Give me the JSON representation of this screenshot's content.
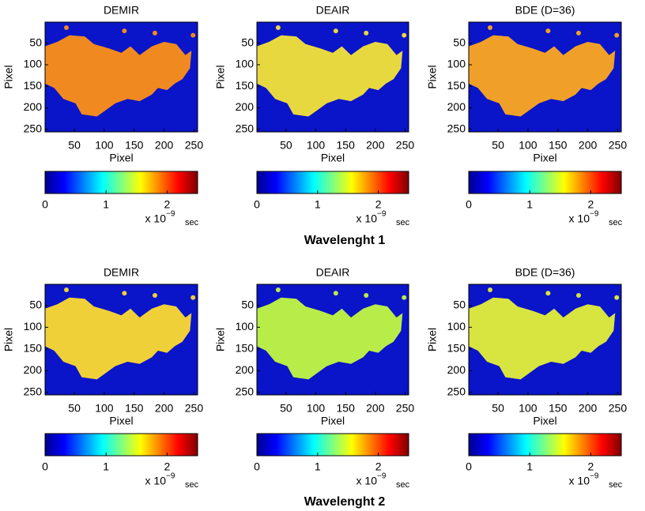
{
  "section_labels": [
    "Wavelenght 1",
    "Wavelenght 2"
  ],
  "chart_data": [
    {
      "type": "heatmap",
      "title": "DEMIR",
      "xlabel": "Pixel",
      "ylabel": "Pixel",
      "xlim": [
        1,
        256
      ],
      "ylim": [
        1,
        256
      ],
      "y_inverted": true,
      "xticks": [
        50,
        100,
        150,
        200,
        250
      ],
      "yticks": [
        50,
        100,
        150,
        200,
        250
      ],
      "background_color": "#0a14c8",
      "region_color": "#f08a20",
      "colorbar": {
        "colormap": "jet",
        "lim": [
          0,
          2.5
        ],
        "ticks": [
          0,
          1,
          2
        ],
        "base": "x 10",
        "exponent": "−9",
        "unit": "sec"
      }
    },
    {
      "type": "heatmap",
      "title": "DEAIR",
      "xlabel": "Pixel",
      "ylabel": "Pixel",
      "xlim": [
        1,
        256
      ],
      "ylim": [
        1,
        256
      ],
      "y_inverted": true,
      "xticks": [
        50,
        100,
        150,
        200,
        250
      ],
      "yticks": [
        50,
        100,
        150,
        200,
        250
      ],
      "background_color": "#0a14c8",
      "region_color": "#e8d840",
      "colorbar": {
        "colormap": "jet",
        "lim": [
          0,
          2.5
        ],
        "ticks": [
          0,
          1,
          2
        ],
        "base": "x 10",
        "exponent": "−9",
        "unit": "sec"
      }
    },
    {
      "type": "heatmap",
      "title": "BDE (D=36)",
      "xlabel": "Pixel",
      "ylabel": "Pixel",
      "xlim": [
        1,
        256
      ],
      "ylim": [
        1,
        256
      ],
      "y_inverted": true,
      "xticks": [
        50,
        100,
        150,
        200,
        250
      ],
      "yticks": [
        50,
        100,
        150,
        200,
        250
      ],
      "background_color": "#0a14c8",
      "region_color": "#f0a028",
      "colorbar": {
        "colormap": "jet",
        "lim": [
          0,
          2.5
        ],
        "ticks": [
          0,
          1,
          2
        ],
        "base": "x 10",
        "exponent": "−9",
        "unit": "sec"
      }
    },
    {
      "type": "heatmap",
      "title": "DEMIR",
      "xlabel": "Pixel",
      "ylabel": "Pixel",
      "xlim": [
        1,
        256
      ],
      "ylim": [
        1,
        256
      ],
      "y_inverted": true,
      "xticks": [
        50,
        100,
        150,
        200,
        250
      ],
      "yticks": [
        50,
        100,
        150,
        200,
        250
      ],
      "background_color": "#0a14c8",
      "region_color": "#f0d038",
      "colorbar": {
        "colormap": "jet",
        "lim": [
          0,
          2.5
        ],
        "ticks": [
          0,
          1,
          2
        ],
        "base": "x 10",
        "exponent": "−9",
        "unit": "sec"
      }
    },
    {
      "type": "heatmap",
      "title": "DEAIR",
      "xlabel": "Pixel",
      "ylabel": "Pixel",
      "xlim": [
        1,
        256
      ],
      "ylim": [
        1,
        256
      ],
      "y_inverted": true,
      "xticks": [
        50,
        100,
        150,
        200,
        250
      ],
      "yticks": [
        50,
        100,
        150,
        200,
        250
      ],
      "background_color": "#0a14c8",
      "region_color": "#b8ec48",
      "colorbar": {
        "colormap": "jet",
        "lim": [
          0,
          2.5
        ],
        "ticks": [
          0,
          1,
          2
        ],
        "base": "x 10",
        "exponent": "−9",
        "unit": "sec"
      }
    },
    {
      "type": "heatmap",
      "title": "BDE (D=36)",
      "xlabel": "Pixel",
      "ylabel": "Pixel",
      "xlim": [
        1,
        256
      ],
      "ylim": [
        1,
        256
      ],
      "y_inverted": true,
      "xticks": [
        50,
        100,
        150,
        200,
        250
      ],
      "yticks": [
        50,
        100,
        150,
        200,
        250
      ],
      "background_color": "#0a14c8",
      "region_color": "#d8e440",
      "colorbar": {
        "colormap": "jet",
        "lim": [
          0,
          2.5
        ],
        "ticks": [
          0,
          1,
          2
        ],
        "base": "x 10",
        "exponent": "−9",
        "unit": "sec"
      }
    }
  ]
}
